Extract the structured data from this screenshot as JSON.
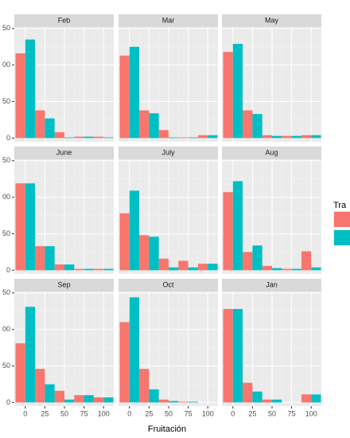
{
  "chart_data": {
    "type": "bar",
    "xlabel": "Fruitación",
    "legend_title": "Tra",
    "x": [
      0,
      25,
      50,
      75,
      100
    ],
    "xlim": [
      -14,
      113
    ],
    "xticks": [
      0,
      25,
      50,
      75,
      100
    ],
    "ylim": [
      -5,
      152
    ],
    "yticks": [
      0,
      50,
      {
        "value": 100,
        "label": "00"
      },
      {
        "value": 150,
        "label": "50"
      }
    ],
    "grid": true,
    "legend_colors": [
      "#F8766D",
      "#00BFC4"
    ],
    "facets": [
      {
        "title": "Feb",
        "series": [
          {
            "color": "#F8766D",
            "values": [
              116,
              38,
              8,
              2,
              2
            ]
          },
          {
            "color": "#00BFC4",
            "values": [
              135,
              27,
              1,
              2,
              1
            ]
          }
        ]
      },
      {
        "title": "Mar",
        "series": [
          {
            "color": "#F8766D",
            "values": [
              113,
              38,
              11,
              1,
              4
            ]
          },
          {
            "color": "#00BFC4",
            "values": [
              125,
              34,
              1,
              1,
              4
            ]
          }
        ]
      },
      {
        "title": "May",
        "series": [
          {
            "color": "#F8766D",
            "values": [
              118,
              38,
              4,
              3,
              4
            ]
          },
          {
            "color": "#00BFC4",
            "values": [
              129,
              33,
              3,
              3,
              4
            ]
          }
        ]
      },
      {
        "title": "June",
        "series": [
          {
            "color": "#F8766D",
            "values": [
              119,
              33,
              8,
              2,
              2
            ]
          },
          {
            "color": "#00BFC4",
            "values": [
              119,
              33,
              8,
              2,
              2
            ]
          }
        ]
      },
      {
        "title": "July",
        "series": [
          {
            "color": "#F8766D",
            "values": [
              78,
              48,
              16,
              13,
              9
            ]
          },
          {
            "color": "#00BFC4",
            "values": [
              109,
              46,
              4,
              4,
              9
            ]
          }
        ]
      },
      {
        "title": "Aug",
        "series": [
          {
            "color": "#F8766D",
            "values": [
              107,
              25,
              6,
              2,
              26
            ]
          },
          {
            "color": "#00BFC4",
            "values": [
              122,
              34,
              3,
              2,
              4
            ]
          }
        ]
      },
      {
        "title": "Sep",
        "series": [
          {
            "color": "#F8766D",
            "values": [
              81,
              46,
              16,
              10,
              7
            ]
          },
          {
            "color": "#00BFC4",
            "values": [
              131,
              25,
              4,
              10,
              7
            ]
          }
        ]
      },
      {
        "title": "Oct",
        "series": [
          {
            "color": "#F8766D",
            "values": [
              110,
              46,
              4,
              1,
              0
            ]
          },
          {
            "color": "#00BFC4",
            "values": [
              144,
              18,
              2,
              1,
              0
            ]
          }
        ]
      },
      {
        "title": "Jan",
        "series": [
          {
            "color": "#F8766D",
            "values": [
              128,
              27,
              4,
              0,
              11
            ]
          },
          {
            "color": "#00BFC4",
            "values": [
              128,
              15,
              4,
              0,
              11
            ]
          }
        ]
      }
    ]
  }
}
